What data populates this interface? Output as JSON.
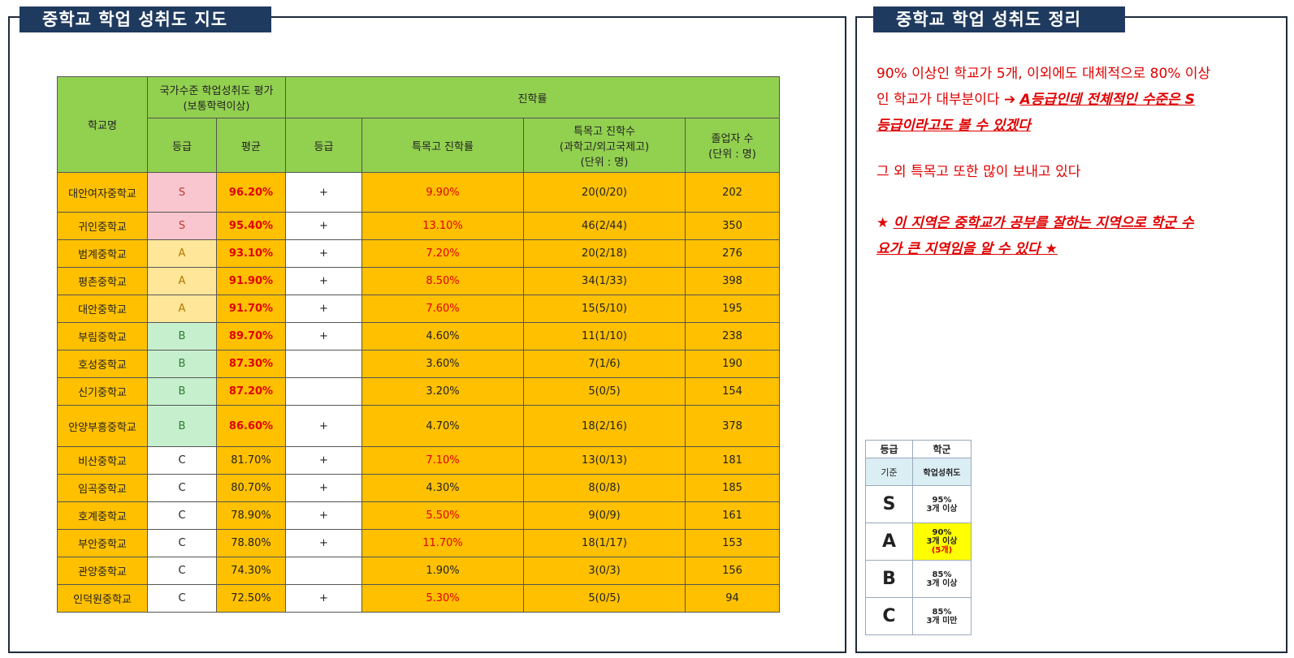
{
  "left_panel": {
    "title": "중학교 학업 성취도 지도",
    "table": {
      "headers": {
        "school": "학교명",
        "national_group": "국가수준 학업성취도 평가\n(보통학력이상)",
        "advancement_group": "진학률",
        "grade": "등급",
        "average": "평균",
        "adv_grade": "등급",
        "special_rate": "특목고 진학률",
        "special_count": "특목고 진학수\n(과학고/외고국제고)\n(단위 : 명)",
        "graduates": "졸업자 수\n(단위 : 명)"
      },
      "rows": [
        {
          "school": "대안여자중학교",
          "grade": "S",
          "average": "96.20%",
          "adv": "+",
          "rate": "9.90%",
          "count": "20(0/20)",
          "grads": "202"
        },
        {
          "school": "귀인중학교",
          "grade": "S",
          "average": "95.40%",
          "adv": "+",
          "rate": "13.10%",
          "count": "46(2/44)",
          "grads": "350"
        },
        {
          "school": "범계중학교",
          "grade": "A",
          "average": "93.10%",
          "adv": "+",
          "rate": "7.20%",
          "count": "20(2/18)",
          "grads": "276"
        },
        {
          "school": "평촌중학교",
          "grade": "A",
          "average": "91.90%",
          "adv": "+",
          "rate": "8.50%",
          "count": "34(1/33)",
          "grads": "398"
        },
        {
          "school": "대안중학교",
          "grade": "A",
          "average": "91.70%",
          "adv": "+",
          "rate": "7.60%",
          "count": "15(5/10)",
          "grads": "195"
        },
        {
          "school": "부림중학교",
          "grade": "B",
          "average": "89.70%",
          "adv": "+",
          "rate": "4.60%",
          "count": "11(1/10)",
          "grads": "238"
        },
        {
          "school": "호성중학교",
          "grade": "B",
          "average": "87.30%",
          "adv": "",
          "rate": "3.60%",
          "count": "7(1/6)",
          "grads": "190"
        },
        {
          "school": "신기중학교",
          "grade": "B",
          "average": "87.20%",
          "adv": "",
          "rate": "3.20%",
          "count": "5(0/5)",
          "grads": "154"
        },
        {
          "school": "안양부흥중학교",
          "grade": "B",
          "average": "86.60%",
          "adv": "+",
          "rate": "4.70%",
          "count": "18(2/16)",
          "grads": "378"
        },
        {
          "school": "비산중학교",
          "grade": "C",
          "average": "81.70%",
          "adv": "+",
          "rate": "7.10%",
          "count": "13(0/13)",
          "grads": "181"
        },
        {
          "school": "임곡중학교",
          "grade": "C",
          "average": "80.70%",
          "adv": "+",
          "rate": "4.30%",
          "count": "8(0/8)",
          "grads": "185"
        },
        {
          "school": "호계중학교",
          "grade": "C",
          "average": "78.90%",
          "adv": "+",
          "rate": "5.50%",
          "count": "9(0/9)",
          "grads": "161"
        },
        {
          "school": "부안중학교",
          "grade": "C",
          "average": "78.80%",
          "adv": "+",
          "rate": "11.70%",
          "count": "18(1/17)",
          "grads": "153"
        },
        {
          "school": "관양중학교",
          "grade": "C",
          "average": "74.30%",
          "adv": "",
          "rate": "1.90%",
          "count": "3(0/3)",
          "grads": "156"
        },
        {
          "school": "인덕원중학교",
          "grade": "C",
          "average": "72.50%",
          "adv": "+",
          "rate": "5.30%",
          "count": "5(0/5)",
          "grads": "94"
        }
      ]
    }
  },
  "right_panel": {
    "title": "중학교 학업 성취도 정리",
    "summary1_line1": "90% 이상인 학교가 5개, 이외에도 대체적으로 80% 이상",
    "summary1_line2_plain": "인 학교가 대부분이다 ➔ ",
    "summary1_line2_emph": "A등급인데 전체적인 수준은 S",
    "summary1_line3_emph": "등급이라고도 볼 수 있겠다",
    "summary2": "그 외 특목고 또한 많이 보내고 있다",
    "summary3_star_open": "★ ",
    "summary3_line1_emph": "이 지역은 중학교가 공부를 잘하는 지역으로 학군 수",
    "summary3_line2_emph": "요가 큰 지역임을 알 수 있다 ",
    "summary3_star_close": "★",
    "legend": {
      "col1_header": "등급",
      "col2_header": "학군",
      "sub1": "기준",
      "sub2": "학업성취도",
      "rows": [
        {
          "grade": "S",
          "line1": "95%",
          "line2": "3개 이상",
          "note": ""
        },
        {
          "grade": "A",
          "line1": "90%",
          "line2": "3개 이상",
          "note": "(5개)"
        },
        {
          "grade": "B",
          "line1": "85%",
          "line2": "3개 이상",
          "note": ""
        },
        {
          "grade": "C",
          "line1": "85%",
          "line2": "3개 미만",
          "note": ""
        }
      ]
    }
  },
  "colors": {
    "header_green": "#92d050",
    "row_orange": "#ffc000",
    "grade_S": "#f9c6cf",
    "grade_A": "#ffe699",
    "grade_B": "#c6efce",
    "highlight_red": "#e00000",
    "legend_highlight": "#ffff00",
    "title_navy": "#1f3a5f"
  }
}
